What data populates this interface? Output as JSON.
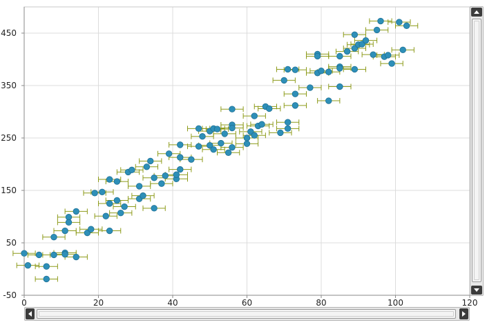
{
  "chart_data": {
    "type": "scatter",
    "title": "",
    "xlabel": "",
    "ylabel": "",
    "xlim": [
      0,
      120
    ],
    "ylim": [
      -50,
      500
    ],
    "x_ticks": [
      0,
      20,
      40,
      60,
      80,
      100,
      120
    ],
    "y_ticks": [
      -50,
      50,
      150,
      250,
      350,
      450
    ],
    "grid": true,
    "legend": "none",
    "colors": {
      "marker_fill": "#2e8fb8",
      "marker_stroke": "#1c6f93",
      "error_bar": "#8c9a18",
      "grid": "#dcdcdc",
      "axis": "#8a8a8a"
    },
    "x_error": 3,
    "series": [
      {
        "points": [
          [
            0,
            30
          ],
          [
            1,
            7
          ],
          [
            4,
            27
          ],
          [
            6,
            5
          ],
          [
            6,
            -19
          ],
          [
            8,
            27
          ],
          [
            8,
            61
          ],
          [
            11,
            31
          ],
          [
            11,
            28
          ],
          [
            11,
            73
          ],
          [
            12,
            99
          ],
          [
            12,
            89
          ],
          [
            14,
            23
          ],
          [
            14,
            110
          ],
          [
            17,
            69
          ],
          [
            18,
            76
          ],
          [
            19,
            145
          ],
          [
            21,
            147
          ],
          [
            22,
            101
          ],
          [
            23,
            125
          ],
          [
            23,
            73
          ],
          [
            23,
            171
          ],
          [
            25,
            131
          ],
          [
            25,
            167
          ],
          [
            26,
            107
          ],
          [
            27,
            119
          ],
          [
            28,
            185
          ],
          [
            29,
            189
          ],
          [
            31,
            134
          ],
          [
            31,
            158
          ],
          [
            32,
            140
          ],
          [
            33,
            195
          ],
          [
            34,
            206
          ],
          [
            35,
            116
          ],
          [
            35,
            174
          ],
          [
            37,
            163
          ],
          [
            38,
            178
          ],
          [
            39,
            220
          ],
          [
            41,
            172
          ],
          [
            41,
            180
          ],
          [
            42,
            190
          ],
          [
            42,
            213
          ],
          [
            42,
            237
          ],
          [
            45,
            209
          ],
          [
            47,
            234
          ],
          [
            47,
            268
          ],
          [
            48,
            253
          ],
          [
            50,
            236
          ],
          [
            50,
            263
          ],
          [
            51,
            228
          ],
          [
            51,
            268
          ],
          [
            52,
            267
          ],
          [
            53,
            240
          ],
          [
            54,
            258
          ],
          [
            55,
            222
          ],
          [
            56,
            232
          ],
          [
            56,
            275
          ],
          [
            56,
            269
          ],
          [
            56,
            305
          ],
          [
            60,
            239
          ],
          [
            60,
            250
          ],
          [
            61,
            262
          ],
          [
            62,
            255
          ],
          [
            62,
            292
          ],
          [
            63,
            273
          ],
          [
            64,
            276
          ],
          [
            65,
            310
          ],
          [
            66,
            306
          ],
          [
            69,
            260
          ],
          [
            70,
            360
          ],
          [
            71,
            381
          ],
          [
            71,
            280
          ],
          [
            71,
            268
          ],
          [
            73,
            380
          ],
          [
            73,
            334
          ],
          [
            73,
            312
          ],
          [
            77,
            346
          ],
          [
            79,
            374
          ],
          [
            79,
            410
          ],
          [
            79,
            406
          ],
          [
            80,
            378
          ],
          [
            82,
            321
          ],
          [
            82,
            376
          ],
          [
            85,
            406
          ],
          [
            85,
            348
          ],
          [
            85,
            386
          ],
          [
            85,
            383
          ],
          [
            87,
            415
          ],
          [
            89,
            447
          ],
          [
            89,
            381
          ],
          [
            89,
            421
          ],
          [
            90,
            428
          ],
          [
            91,
            429
          ],
          [
            92,
            436
          ],
          [
            94,
            409
          ],
          [
            95,
            456
          ],
          [
            96,
            473
          ],
          [
            97,
            405
          ],
          [
            98,
            408
          ],
          [
            99,
            392
          ],
          [
            101,
            471
          ],
          [
            102,
            418
          ],
          [
            103,
            464
          ]
        ]
      }
    ]
  },
  "scrollbars": {
    "vertical": {
      "position": 0.0,
      "visible_fraction": 1.0
    },
    "horizontal": {
      "position": 0.0,
      "visible_fraction": 1.0
    }
  }
}
